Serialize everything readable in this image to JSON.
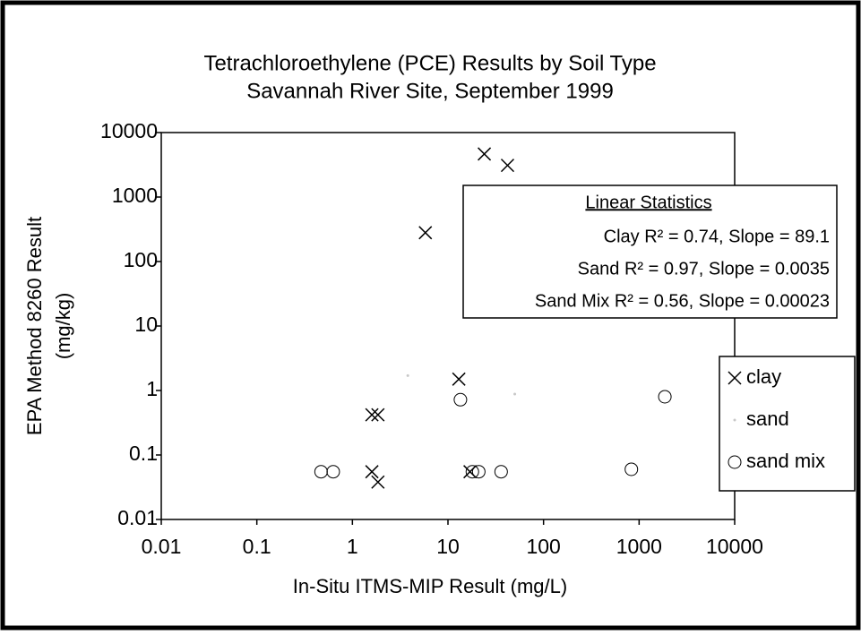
{
  "chart_data": {
    "type": "scatter",
    "title": "Tetrachloroethylene (PCE) Results by Soil Type",
    "subtitle": "Savannah River Site, September 1999",
    "x_label": "In-Situ ITMS-MIP Result (mg/L)",
    "y_label": [
      "EPA Method 8260 Result",
      "(mg/kg)"
    ],
    "xscale": "log",
    "yscale": "log",
    "xlim": [
      0.01,
      10000
    ],
    "ylim": [
      0.01,
      10000
    ],
    "xticks": [
      0.01,
      0.1,
      1,
      10,
      100,
      1000,
      10000
    ],
    "yticks": [
      0.01,
      0.1,
      1,
      10,
      100,
      1000,
      10000
    ],
    "grid": false,
    "legend_position": "right",
    "annotation": {
      "title": "Linear Statistics",
      "lines": [
        "Clay R² = 0.74, Slope = 89.1",
        "Sand R² = 0.97, Slope = 0.0035",
        "Sand Mix R² = 0.56, Slope = 0.00023"
      ]
    },
    "series": [
      {
        "name": "clay",
        "marker": "x",
        "color": "#000000",
        "x": [
          24,
          42,
          5.8,
          13,
          1.6,
          1.85,
          1.6,
          1.85,
          17
        ],
        "values": [
          4650,
          3100,
          280,
          1.5,
          0.42,
          0.42,
          0.055,
          0.038,
          0.055
        ]
      },
      {
        "name": "sand",
        "marker": "dot",
        "color": "#c8c8c8",
        "x": [
          3.8,
          50
        ],
        "values": [
          1.7,
          0.88
        ]
      },
      {
        "name": "sand mix",
        "marker": "circle",
        "color": "#000000",
        "x": [
          0.47,
          0.63,
          13.5,
          18,
          21,
          36,
          830,
          1860
        ],
        "values": [
          0.055,
          0.055,
          0.72,
          0.055,
          0.055,
          0.055,
          0.06,
          0.8
        ]
      }
    ]
  }
}
